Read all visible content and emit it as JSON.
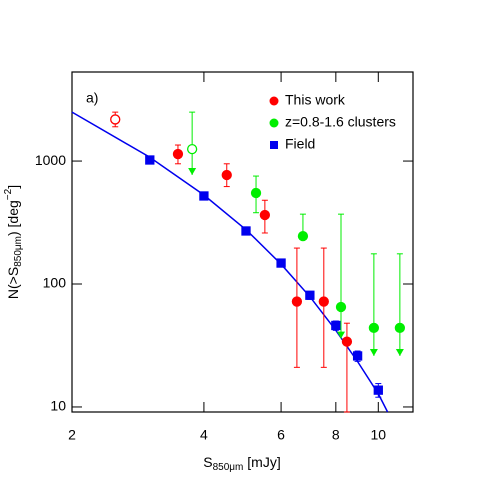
{
  "chart_data": {
    "type": "scatter",
    "annotation": "a)",
    "xlabel": {
      "main": "S",
      "sub": "850μm",
      "rest": " [mJy]"
    },
    "ylabel": {
      "main": "N(>S",
      "sub": "850μm",
      "mid": ") [deg",
      "sup": "−2",
      "rest": "]"
    },
    "xscale": "log",
    "yscale": "log",
    "xlim": [
      2,
      12
    ],
    "ylim": [
      9.1,
      5300
    ],
    "xticks": [
      2,
      4,
      6,
      8,
      10
    ],
    "yticks": [
      10,
      100,
      1000
    ],
    "series": [
      {
        "name": "This work",
        "color": "#ff0000",
        "marker": "circle",
        "x": [
          2.51,
          3.49,
          4.51,
          5.51,
          6.52,
          7.51,
          8.48
        ],
        "values": [
          2180,
          1140,
          770,
          364,
          72,
          72,
          34
        ],
        "yerr_low": [
          1900,
          950,
          620,
          260,
          21,
          21,
          9.1
        ],
        "yerr_high": [
          2500,
          1350,
          950,
          480,
          196,
          196,
          48
        ],
        "open_points": [
          0
        ],
        "upper_limits": []
      },
      {
        "name": "z=0.8-1.6 clusters",
        "color": "#00ee00",
        "marker": "circle",
        "x": [
          3.76,
          5.26,
          6.73,
          8.22,
          9.77,
          11.2
        ],
        "values": [
          1250,
          550,
          245,
          65,
          44,
          44
        ],
        "yerr_low": [
          770,
          380,
          245,
          36,
          26,
          26
        ],
        "yerr_high": [
          2500,
          755,
          370,
          370,
          176,
          176
        ],
        "open_points": [
          0
        ],
        "upper_limits": [
          0,
          3,
          4,
          5
        ]
      },
      {
        "name": "Field",
        "color": "#0000ee",
        "marker": "square",
        "x": [
          3.01,
          4,
          4.99,
          6,
          6.98,
          8,
          8.97,
          10
        ],
        "values": [
          1020,
          520,
          270,
          148,
          81,
          46,
          26,
          13.7
        ],
        "yerr_low": [
          980,
          500,
          258,
          140,
          75,
          42,
          23.5,
          12
        ],
        "yerr_high": [
          1060,
          540,
          282,
          156,
          87,
          50,
          28.5,
          15.5
        ],
        "open_points": [],
        "upper_limits": []
      }
    ],
    "model": {
      "color": "#0000ee",
      "x": [
        2,
        3,
        4,
        5,
        6,
        7,
        8,
        9,
        10,
        10.5
      ],
      "values": [
        2500,
        1080,
        530,
        275,
        145,
        78,
        42,
        23,
        12.8,
        9.1
      ]
    }
  }
}
